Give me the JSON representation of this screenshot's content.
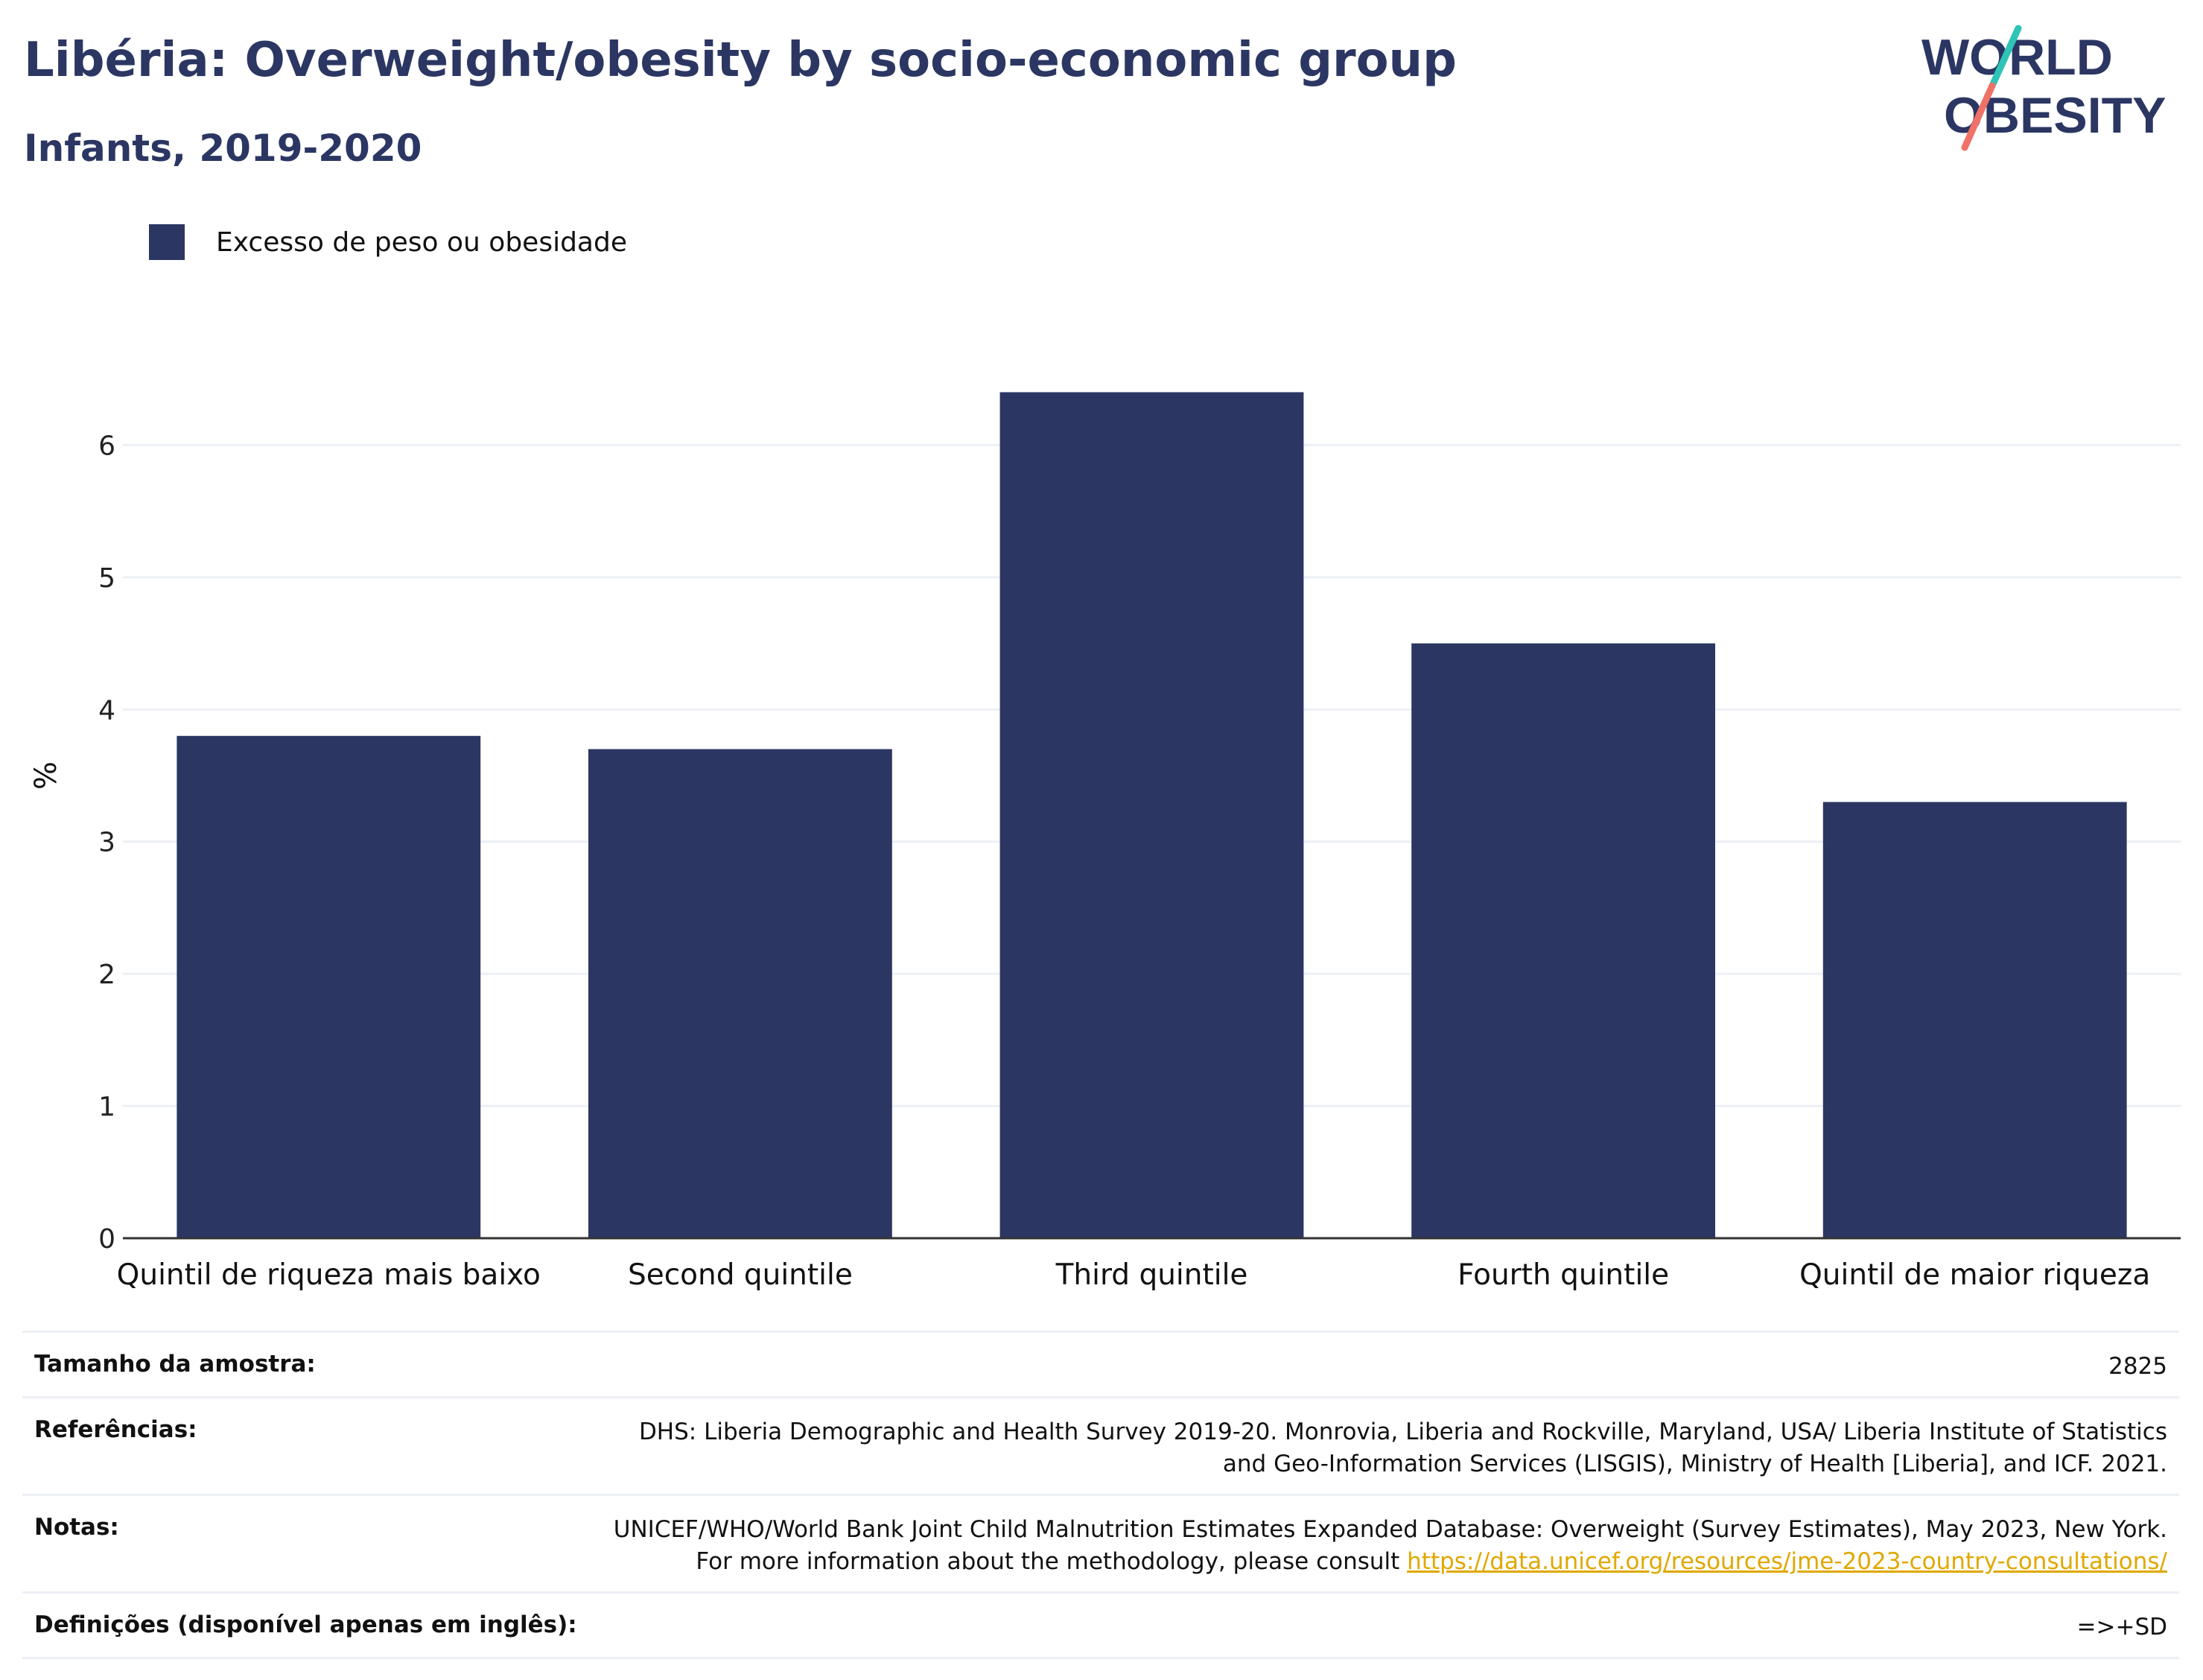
{
  "header": {
    "title": "Libéria: Overweight/obesity by socio-economic group",
    "subtitle": "Infants, 2019-2020"
  },
  "logo": {
    "line1": "WORLD",
    "line2": "OBESITY",
    "text_color": "#2b3663",
    "slash_colors": [
      "#2ec4b6",
      "#f07167"
    ]
  },
  "colors": {
    "bar": "#2b3663",
    "gridline": "#eceff5",
    "axis": "#333333",
    "link": "#e0a800"
  },
  "chart_data": {
    "type": "bar",
    "categories": [
      "Quintil de riqueza mais baixo",
      "Second quintile",
      "Third quintile",
      "Fourth quintile",
      "Quintil de maior riqueza"
    ],
    "series": [
      {
        "name": "Excesso de peso ou obesidade",
        "values": [
          3.8,
          3.7,
          6.4,
          4.5,
          3.3
        ]
      }
    ],
    "ylabel": "%",
    "ylim": [
      0,
      7
    ],
    "yticks": [
      0,
      1,
      2,
      3,
      4,
      5,
      6
    ],
    "grid": true,
    "legend_position": "top-left"
  },
  "info": {
    "rows": [
      {
        "label": "Tamanho da amostra:",
        "value": "2825"
      },
      {
        "label": "Referências:",
        "value": "DHS: Liberia Demographic and Health Survey 2019-20. Monrovia, Liberia and Rockville, Maryland, USA/ Liberia Institute of Statistics and Geo-Information Services (LISGIS), Ministry of Health [Liberia], and ICF. 2021."
      },
      {
        "label": "Notas:",
        "value": "UNICEF/WHO/World Bank Joint Child Malnutrition Estimates Expanded Database: Overweight (Survey Estimates), May 2023, New York. For more information about the methodology, please consult ",
        "link": "https://data.unicef.org/resources/jme-2023-country-consultations/"
      },
      {
        "label": "Definições (disponível apenas em inglês):",
        "value": "=>+SD"
      }
    ]
  }
}
